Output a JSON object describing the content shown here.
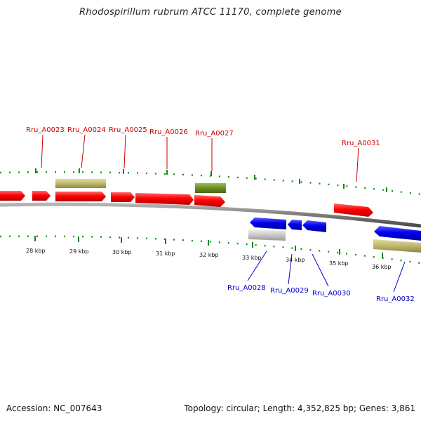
{
  "title": "Rhodospirillum rubrum ATCC 11170, complete genome",
  "footer": {
    "accession": "Accession: NC_007643",
    "topology": "Topology: circular; Length: 4,352,825 bp; Genes: 3,861"
  },
  "colors": {
    "forward_cds": "#ff0000",
    "reverse_cds": "#0000ee",
    "forward_label": "#cc0000",
    "reverse_label": "#0000cc",
    "gene_feature_khaki": "#bdb76b",
    "gene_feature_olive": "#6b8e23",
    "gene_feature_gray": "#c8c8c8",
    "backbone": "#808080",
    "ticks": "#007f00",
    "scale_text": "#111111"
  },
  "scale": {
    "ticks": [
      "28 kbp",
      "29 kbp",
      "30 kbp",
      "31 kbp",
      "32 kbp",
      "33 kbp",
      "34 kbp",
      "35 kbp",
      "36 kbp"
    ]
  },
  "gene_labels": {
    "forward": [
      "Rru_A0023",
      "Rru_A0024",
      "Rru_A0025",
      "Rru_A0026",
      "Rru_A0027",
      "Rru_A0031"
    ],
    "reverse": [
      "Rru_A0028",
      "Rru_A0029",
      "Rru_A0030",
      "Rru_A0032"
    ]
  }
}
